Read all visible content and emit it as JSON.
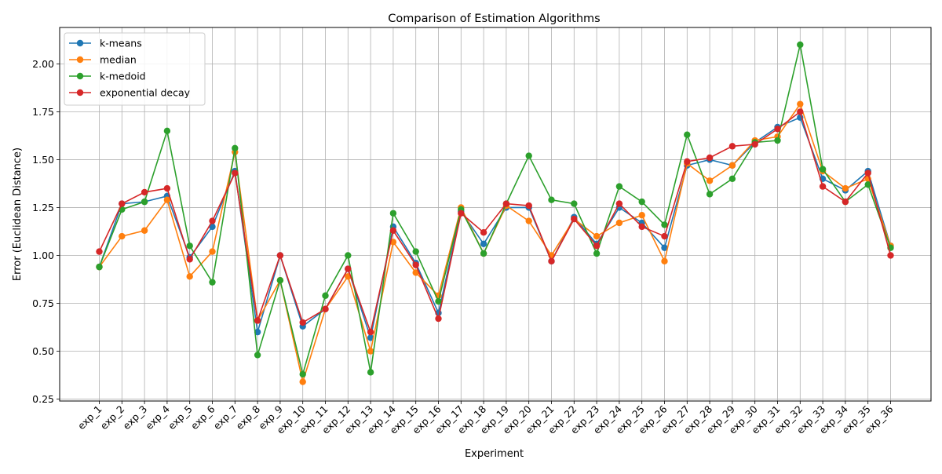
{
  "chart_data": {
    "type": "line",
    "title": "Comparison of Estimation Algorithms",
    "xlabel": "Experiment",
    "ylabel": "Error (Euclidean Distance)",
    "categories": [
      "exp_1",
      "exp_2",
      "exp_3",
      "exp_4",
      "exp_5",
      "exp_6",
      "exp_7",
      "exp_8",
      "exp_9",
      "exp_10",
      "exp_11",
      "exp_12",
      "exp_13",
      "exp_14",
      "exp_15",
      "exp_16",
      "exp_17",
      "exp_18",
      "exp_19",
      "exp_20",
      "exp_21",
      "exp_22",
      "exp_23",
      "exp_24",
      "exp_25",
      "exp_26",
      "exp_27",
      "exp_28",
      "exp_29",
      "exp_30",
      "exp_31",
      "exp_32",
      "exp_33",
      "exp_34",
      "exp_35",
      "exp_36"
    ],
    "ylim": [
      0.24,
      2.19
    ],
    "yticks": [
      "0.25",
      "0.50",
      "0.75",
      "1.00",
      "1.25",
      "1.50",
      "1.75",
      "2.00"
    ],
    "grid": true,
    "legend_position": "top-left",
    "series": [
      {
        "name": "k-means",
        "color": "#1f77b4",
        "values": [
          0.94,
          1.27,
          1.28,
          1.31,
          0.99,
          1.15,
          1.44,
          0.6,
          1.0,
          0.63,
          0.72,
          0.93,
          0.57,
          1.15,
          0.96,
          0.7,
          1.23,
          1.06,
          1.25,
          1.25,
          0.97,
          1.2,
          1.06,
          1.25,
          1.17,
          1.04,
          1.47,
          1.5,
          1.47,
          1.59,
          1.67,
          1.72,
          1.4,
          1.34,
          1.44,
          1.05
        ]
      },
      {
        "name": "median",
        "color": "#ff7f0e",
        "values": [
          0.94,
          1.1,
          1.13,
          1.29,
          0.89,
          1.02,
          1.54,
          0.66,
          0.87,
          0.34,
          0.72,
          0.89,
          0.5,
          1.07,
          0.91,
          0.79,
          1.25,
          1.01,
          1.26,
          1.18,
          1.0,
          1.19,
          1.1,
          1.17,
          1.21,
          0.97,
          1.48,
          1.39,
          1.47,
          1.6,
          1.62,
          1.79,
          1.44,
          1.35,
          1.4,
          1.05
        ]
      },
      {
        "name": "k-medoid",
        "color": "#2ca02c",
        "values": [
          0.94,
          1.24,
          1.28,
          1.65,
          1.05,
          0.86,
          1.56,
          0.48,
          0.87,
          0.38,
          0.79,
          1.0,
          0.39,
          1.22,
          1.02,
          0.76,
          1.24,
          1.01,
          1.27,
          1.52,
          1.29,
          1.27,
          1.01,
          1.36,
          1.28,
          1.16,
          1.63,
          1.32,
          1.4,
          1.59,
          1.6,
          2.1,
          1.45,
          1.28,
          1.37,
          1.04
        ]
      },
      {
        "name": "exponential decay",
        "color": "#d62728",
        "values": [
          1.02,
          1.27,
          1.33,
          1.35,
          0.98,
          1.18,
          1.43,
          0.66,
          1.0,
          0.65,
          0.72,
          0.93,
          0.6,
          1.13,
          0.95,
          0.67,
          1.22,
          1.12,
          1.27,
          1.26,
          0.97,
          1.19,
          1.05,
          1.27,
          1.15,
          1.1,
          1.49,
          1.51,
          1.57,
          1.58,
          1.66,
          1.75,
          1.36,
          1.28,
          1.43,
          1.0
        ]
      }
    ]
  }
}
